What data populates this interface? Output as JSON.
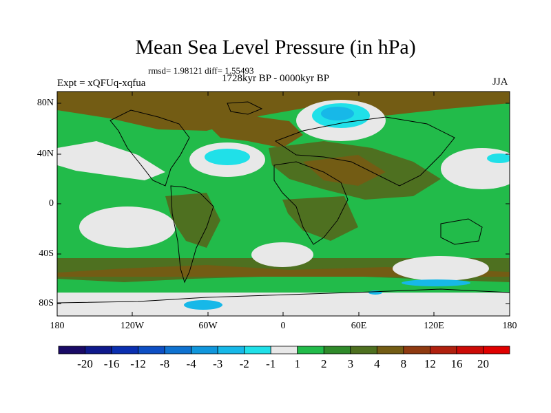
{
  "title": "Mean Sea Level Pressure (in hPa)",
  "stats_line": "rmsd= 1.98121 diff= 1.55493",
  "period": "1728kyr BP - 0000kyr BP",
  "experiment": "Expt = xQFUq-xqfua",
  "season": "JJA",
  "lat_ticks": [
    "80N",
    "40N",
    "0",
    "40S",
    "80S"
  ],
  "lon_ticks": [
    "180",
    "120W",
    "60W",
    "0",
    "60E",
    "120E",
    "180"
  ],
  "colorbar": {
    "labels": [
      "-20",
      "-16",
      "-12",
      "-8",
      "-4",
      "-3",
      "-2",
      "-1",
      "1",
      "2",
      "3",
      "4",
      "8",
      "12",
      "16",
      "20"
    ],
    "colors": [
      "#1a0a66",
      "#0f1a8c",
      "#0a2fb0",
      "#0d4fc4",
      "#0f72d0",
      "#1096dc",
      "#17b8e8",
      "#20e0e8",
      "#e8e8e8",
      "#22bb4a",
      "#2f8a2a",
      "#4e7020",
      "#735c14",
      "#8f3a10",
      "#b0200e",
      "#cc0a06",
      "#e00000"
    ]
  },
  "colors": {
    "land_outline": "#000000",
    "field_dominant": "#22bb4a"
  }
}
